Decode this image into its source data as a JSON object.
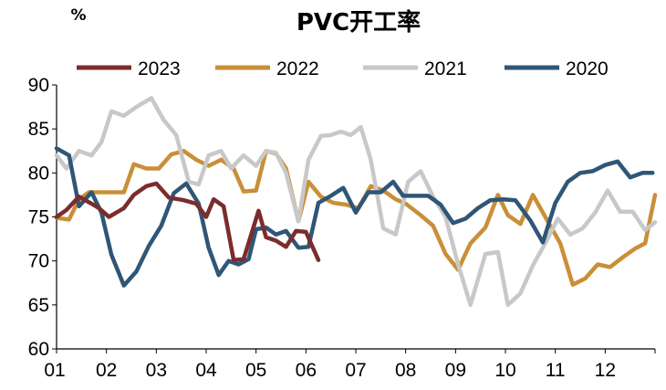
{
  "chart_data": {
    "type": "line",
    "title": "PVC开工率",
    "ylabel": "%",
    "xlabel": "",
    "ylim": [
      60,
      90
    ],
    "yticks": [
      "90",
      "85",
      "80",
      "75",
      "70",
      "65",
      "60"
    ],
    "categories": [
      "01",
      "02",
      "03",
      "04",
      "05",
      "06",
      "07",
      "08",
      "09",
      "10",
      "11",
      "12"
    ],
    "legend_position": "top",
    "grid": false,
    "series": [
      {
        "name": "2023",
        "color": "#7b2c2c",
        "x": [
          1.0,
          1.2,
          1.45,
          1.7,
          1.85,
          2.05,
          2.35,
          2.55,
          2.8,
          3.0,
          3.25,
          3.55,
          3.8,
          4.0,
          4.15,
          4.35,
          4.55,
          4.75,
          5.05,
          5.2,
          5.4,
          5.6,
          5.8,
          6.0,
          6.25
        ],
        "values": [
          75.0,
          75.8,
          77.3,
          76.5,
          76.0,
          75.0,
          76.0,
          77.5,
          78.5,
          78.8,
          77.2,
          76.9,
          76.5,
          75.0,
          77.0,
          76.2,
          70.1,
          70.2,
          75.7,
          72.7,
          72.3,
          71.6,
          73.4,
          73.3,
          70.1
        ]
      },
      {
        "name": "2022",
        "color": "#c98f38",
        "x": [
          1.0,
          1.25,
          1.45,
          1.65,
          1.85,
          2.1,
          2.35,
          2.55,
          2.8,
          3.05,
          3.3,
          3.55,
          3.8,
          4.05,
          4.3,
          4.55,
          4.75,
          5.0,
          5.2,
          5.4,
          5.6,
          5.85,
          6.05,
          6.3,
          6.55,
          6.8,
          7.05,
          7.3,
          7.55,
          7.8,
          8.0,
          8.3,
          8.55,
          8.8,
          9.05,
          9.3,
          9.6,
          9.85,
          10.05,
          10.3,
          10.55,
          10.8,
          11.1,
          11.35,
          11.6,
          11.85,
          12.1,
          12.35,
          12.6,
          12.8,
          13.0
        ],
        "values": [
          74.9,
          74.7,
          77.0,
          77.8,
          77.8,
          77.8,
          77.8,
          81.0,
          80.5,
          80.5,
          82.1,
          82.5,
          81.5,
          80.8,
          81.5,
          80.5,
          77.9,
          78.0,
          82.5,
          82.2,
          80.5,
          74.5,
          79.0,
          77.3,
          76.6,
          76.4,
          76.0,
          78.5,
          78.0,
          77.0,
          76.5,
          75.2,
          74.0,
          70.8,
          69.0,
          72.0,
          73.8,
          77.5,
          75.2,
          74.2,
          77.5,
          75.0,
          72.0,
          67.3,
          68.0,
          69.6,
          69.3,
          70.4,
          71.4,
          72.0,
          77.5
        ]
      },
      {
        "name": "2021",
        "color": "#c8c8c8",
        "x": [
          1.0,
          1.2,
          1.45,
          1.7,
          1.9,
          2.1,
          2.35,
          2.6,
          2.9,
          3.15,
          3.4,
          3.65,
          3.85,
          4.05,
          4.3,
          4.5,
          4.75,
          5.0,
          5.2,
          5.4,
          5.6,
          5.85,
          6.05,
          6.3,
          6.5,
          6.7,
          6.9,
          7.1,
          7.3,
          7.55,
          7.8,
          8.05,
          8.3,
          8.55,
          8.8,
          9.05,
          9.3,
          9.6,
          9.85,
          10.05,
          10.3,
          10.55,
          10.8,
          11.05,
          11.3,
          11.55,
          11.8,
          12.05,
          12.3,
          12.55,
          12.8,
          13.0
        ],
        "values": [
          82.0,
          80.5,
          82.5,
          82.0,
          83.5,
          87.0,
          86.5,
          87.5,
          88.5,
          86.0,
          84.3,
          79.0,
          78.7,
          82.0,
          82.5,
          80.5,
          82.0,
          80.8,
          82.5,
          82.3,
          80.0,
          74.5,
          81.5,
          84.2,
          84.3,
          84.7,
          84.3,
          85.2,
          81.5,
          73.7,
          73.0,
          79.0,
          80.2,
          77.3,
          75.0,
          69.6,
          65.0,
          70.8,
          71.0,
          65.0,
          66.3,
          69.5,
          72.0,
          74.8,
          73.0,
          73.7,
          75.5,
          78.0,
          75.6,
          75.6,
          73.5,
          74.4
        ]
      },
      {
        "name": "2020",
        "color": "#2f5677",
        "x": [
          1.0,
          1.25,
          1.45,
          1.7,
          1.9,
          2.1,
          2.35,
          2.6,
          2.85,
          3.1,
          3.35,
          3.6,
          3.85,
          4.05,
          4.25,
          4.45,
          4.65,
          4.85,
          5.0,
          5.2,
          5.4,
          5.6,
          5.85,
          6.05,
          6.25,
          6.5,
          6.75,
          7.0,
          7.25,
          7.5,
          7.75,
          7.95,
          8.2,
          8.45,
          8.7,
          8.95,
          9.2,
          9.45,
          9.7,
          9.95,
          10.2,
          10.5,
          10.75,
          11.0,
          11.25,
          11.5,
          11.75,
          12.0,
          12.25,
          12.5,
          12.75,
          12.95
        ],
        "values": [
          82.8,
          82.0,
          76.2,
          77.8,
          75.5,
          70.7,
          67.2,
          68.8,
          71.7,
          74.0,
          77.7,
          78.8,
          76.5,
          71.5,
          68.4,
          70.0,
          69.6,
          70.2,
          73.6,
          73.8,
          73.0,
          73.4,
          71.5,
          71.6,
          76.6,
          77.4,
          78.3,
          75.5,
          77.8,
          77.8,
          79.0,
          77.4,
          77.4,
          77.4,
          76.4,
          74.3,
          74.8,
          76.0,
          76.9,
          77.0,
          76.9,
          74.6,
          72.1,
          76.6,
          79.0,
          80.0,
          80.2,
          80.9,
          81.3,
          79.5,
          80.0,
          80.0
        ]
      }
    ]
  }
}
